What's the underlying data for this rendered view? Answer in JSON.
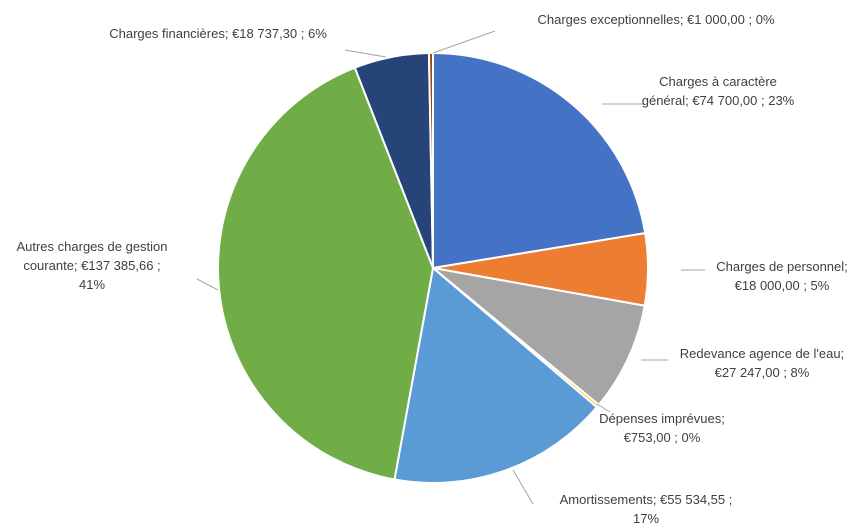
{
  "chart_data": {
    "type": "pie",
    "title": "",
    "currency_symbol": "€",
    "slices": [
      {
        "name": "Charges à caractère général",
        "value": 74700.0,
        "value_label": "€74 700,00",
        "percent_label": "23%",
        "label_lines": [
          "Charges à caractère",
          "général;  €74 700,00 ; 23%"
        ],
        "color": "#4472C4"
      },
      {
        "name": "Charges de personnel",
        "value": 18000.0,
        "value_label": "€18 000,00",
        "percent_label": "5%",
        "label_lines": [
          "Charges de personnel;",
          "€18 000,00 ; 5%"
        ],
        "color": "#ED7D31"
      },
      {
        "name": "Redevance agence de l'eau",
        "value": 27247.0,
        "value_label": "€27 247,00",
        "percent_label": "8%",
        "label_lines": [
          "Redevance agence de l'eau;",
          "€27 247,00 ; 8%"
        ],
        "color": "#A5A5A5"
      },
      {
        "name": "Dépenses imprévues",
        "value": 753.0,
        "value_label": "€753,00",
        "percent_label": "0%",
        "label_lines": [
          "Dépenses imprévues;",
          "€753,00 ; 0%"
        ],
        "color": "#FFC000"
      },
      {
        "name": "Amortissements",
        "value": 55534.55,
        "value_label": "€55 534,55",
        "percent_label": "17%",
        "label_lines": [
          "Amortissements;  €55 534,55 ;",
          "17%"
        ],
        "color": "#5B9BD5"
      },
      {
        "name": "Autres charges de gestion courante",
        "value": 137385.66,
        "value_label": "€137 385,66",
        "percent_label": "41%",
        "label_lines": [
          "Autres charges de gestion",
          "courante;  €137 385,66 ;",
          "41%"
        ],
        "color": "#70AD47"
      },
      {
        "name": "Charges financières",
        "value": 18737.3,
        "value_label": "€18 737,30",
        "percent_label": "6%",
        "label_lines": [
          "Charges financières;  €18 737,30 ; 6%"
        ],
        "color": "#264478"
      },
      {
        "name": "Charges exceptionnelles",
        "value": 1000.0,
        "value_label": "€1 000,00",
        "percent_label": "0%",
        "label_lines": [
          "Charges exceptionnelles;  €1 000,00 ; 0%"
        ],
        "color": "#9E480E"
      }
    ],
    "legend": "none",
    "data_labels": "outside with leader lines"
  }
}
